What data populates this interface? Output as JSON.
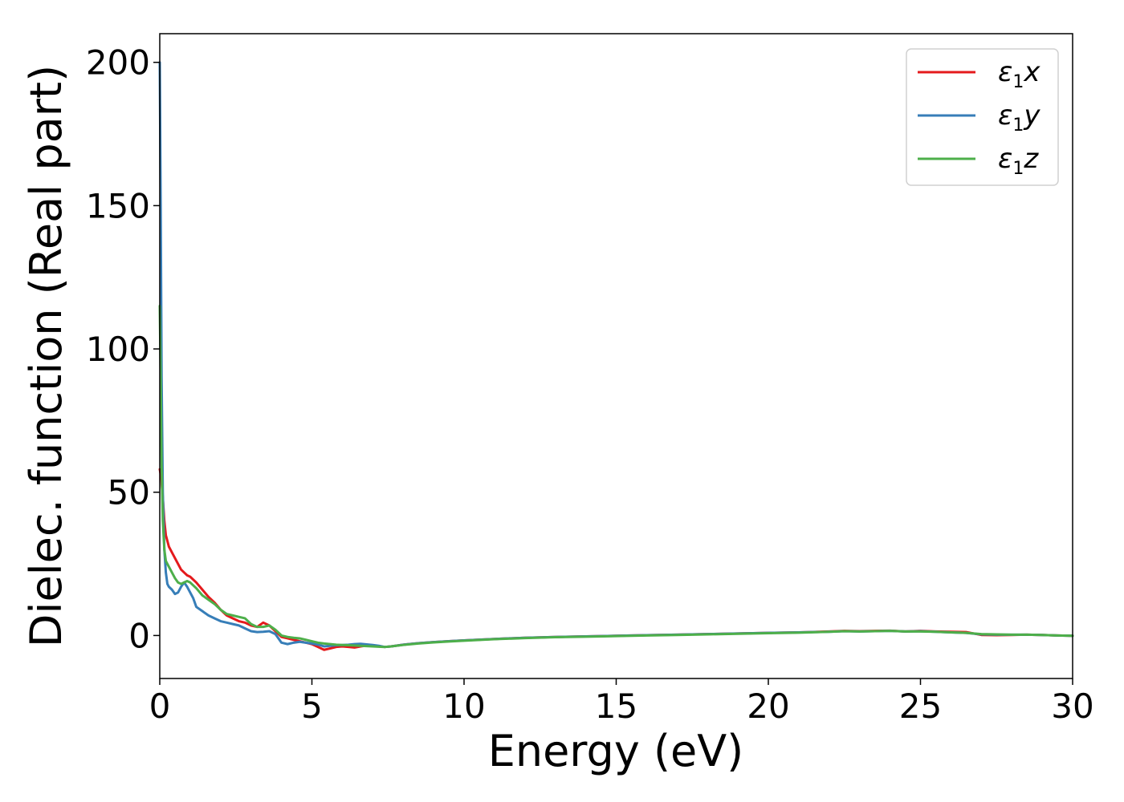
{
  "chart_data": {
    "type": "line",
    "title": "",
    "xlabel": "Energy (eV)",
    "ylabel": "Dielec. function (Real part)",
    "xlim": [
      0,
      30
    ],
    "ylim": [
      -15,
      210
    ],
    "xticks": [
      0,
      5,
      10,
      15,
      20,
      25,
      30
    ],
    "xtick_labels": [
      "0",
      "5",
      "10",
      "15",
      "20",
      "25",
      "30"
    ],
    "yticks": [
      0,
      50,
      100,
      150,
      200
    ],
    "ytick_labels": [
      "0",
      "50",
      "100",
      "150",
      "200"
    ],
    "grid": false,
    "legend": {
      "location": "upper-right",
      "entries": [
        {
          "base": "ε",
          "sub": "1",
          "var": "x",
          "color": "#e41a1c"
        },
        {
          "base": "ε",
          "sub": "1",
          "var": "y",
          "color": "#377eb8"
        },
        {
          "base": "ε",
          "sub": "1",
          "var": "z",
          "color": "#4daf4a"
        }
      ]
    },
    "series": [
      {
        "color": "#e41a1c",
        "x": [
          0,
          0.05,
          0.1,
          0.15,
          0.2,
          0.3,
          0.4,
          0.5,
          0.6,
          0.7,
          0.8,
          0.9,
          1.0,
          1.2,
          1.4,
          1.6,
          1.8,
          2.0,
          2.2,
          2.4,
          2.6,
          2.8,
          3.0,
          3.2,
          3.4,
          3.6,
          3.8,
          4.0,
          4.2,
          4.4,
          4.6,
          4.8,
          5.0,
          5.2,
          5.4,
          5.6,
          5.8,
          6.0,
          6.2,
          6.4,
          6.6,
          6.8,
          7.0,
          7.2,
          7.4,
          7.6,
          8.0,
          8.5,
          9.0,
          9.5,
          10.0,
          11.0,
          12.0,
          13.0,
          14.0,
          15.0,
          16.0,
          17.0,
          18.0,
          19.0,
          20.0,
          21.0,
          22.0,
          22.5,
          23.0,
          23.5,
          24.0,
          24.5,
          25.0,
          25.5,
          26.0,
          26.5,
          27.0,
          27.5,
          28.0,
          28.5,
          29.0,
          29.5,
          30.0
        ],
        "y": [
          58,
          55,
          48,
          40,
          35,
          31,
          29,
          27,
          25,
          23,
          22,
          21,
          20.5,
          18.5,
          16,
          13.5,
          11.5,
          9,
          7,
          6,
          5,
          4.5,
          3.5,
          3,
          4.5,
          3.5,
          1.5,
          -0.5,
          -1,
          -1.5,
          -2,
          -2.5,
          -3,
          -4,
          -5,
          -4.5,
          -4,
          -3.8,
          -4,
          -4.2,
          -3.8,
          -3.5,
          -3.6,
          -3.8,
          -4,
          -3.8,
          -3.2,
          -2.7,
          -2.3,
          -2,
          -1.7,
          -1.2,
          -0.8,
          -0.5,
          -0.3,
          -0.1,
          0.1,
          0.3,
          0.5,
          0.7,
          0.9,
          1.1,
          1.4,
          1.6,
          1.5,
          1.6,
          1.7,
          1.4,
          1.6,
          1.4,
          1.3,
          1.2,
          0.2,
          0.1,
          0.2,
          0.3,
          0.2,
          0.0,
          -0.1
        ]
      },
      {
        "color": "#377eb8",
        "x": [
          0,
          0.03,
          0.06,
          0.1,
          0.15,
          0.2,
          0.25,
          0.3,
          0.4,
          0.5,
          0.6,
          0.7,
          0.8,
          0.9,
          1.0,
          1.1,
          1.2,
          1.4,
          1.6,
          1.8,
          2.0,
          2.2,
          2.4,
          2.6,
          2.8,
          3.0,
          3.2,
          3.4,
          3.6,
          3.8,
          3.9,
          4.0,
          4.2,
          4.4,
          4.6,
          4.8,
          5.0,
          5.2,
          5.4,
          5.6,
          5.8,
          6.0,
          6.2,
          6.4,
          6.6,
          6.8,
          7.0,
          7.2,
          7.4,
          7.6,
          8.0,
          8.5,
          9.0,
          9.5,
          10.0,
          11.0,
          12.0,
          13.0,
          14.0,
          15.0,
          16.0,
          17.0,
          18.0,
          19.0,
          20.0,
          21.0,
          22.0,
          22.5,
          23.0,
          23.5,
          24.0,
          24.5,
          25.0,
          25.5,
          26.0,
          26.5,
          27.0,
          27.5,
          28.0,
          28.5,
          29.0,
          29.5,
          30.0
        ],
        "y": [
          200,
          150,
          90,
          50,
          30,
          22,
          18,
          17,
          16,
          14.5,
          15,
          17,
          18.5,
          17,
          15,
          13,
          10,
          8.5,
          7,
          6,
          5,
          4.5,
          4,
          3.5,
          2.5,
          1.5,
          1.2,
          1.3,
          1.5,
          0.5,
          -1,
          -2.5,
          -3,
          -2.5,
          -2.2,
          -2.5,
          -2.8,
          -3.2,
          -3.8,
          -3.6,
          -3.4,
          -3.3,
          -3.2,
          -3,
          -2.9,
          -3.1,
          -3.3,
          -3.6,
          -4,
          -3.8,
          -3.2,
          -2.7,
          -2.3,
          -2,
          -1.7,
          -1.2,
          -0.8,
          -0.5,
          -0.3,
          -0.1,
          0.1,
          0.3,
          0.5,
          0.7,
          0.9,
          1.1,
          1.3,
          1.5,
          1.4,
          1.5,
          1.6,
          1.4,
          1.5,
          1.3,
          1.1,
          0.9,
          0.4,
          0.3,
          0.3,
          0.3,
          0.2,
          0.0,
          -0.1
        ]
      },
      {
        "color": "#4daf4a",
        "x": [
          0,
          0.03,
          0.06,
          0.1,
          0.15,
          0.2,
          0.3,
          0.4,
          0.5,
          0.6,
          0.7,
          0.8,
          0.9,
          1.0,
          1.2,
          1.4,
          1.6,
          1.8,
          2.0,
          2.2,
          2.4,
          2.6,
          2.8,
          3.0,
          3.2,
          3.4,
          3.6,
          3.8,
          4.0,
          4.2,
          4.4,
          4.6,
          4.8,
          5.0,
          5.2,
          5.4,
          5.6,
          5.8,
          6.0,
          6.2,
          6.4,
          6.6,
          6.8,
          7.0,
          7.2,
          7.4,
          7.6,
          8.0,
          8.5,
          9.0,
          9.5,
          10.0,
          11.0,
          12.0,
          13.0,
          14.0,
          15.0,
          16.0,
          17.0,
          18.0,
          19.0,
          20.0,
          21.0,
          22.0,
          22.5,
          23.0,
          23.5,
          24.0,
          24.5,
          25.0,
          25.5,
          26.0,
          26.5,
          27.0,
          27.5,
          28.0,
          28.5,
          29.0,
          29.5,
          30.0
        ],
        "y": [
          115,
          90,
          60,
          40,
          30,
          26,
          24,
          22,
          20,
          18.5,
          18,
          18.5,
          19,
          18.5,
          16.5,
          14,
          12.5,
          11,
          9,
          7.5,
          7,
          6.5,
          6,
          4,
          3,
          3,
          3.5,
          2,
          0,
          -0.5,
          -0.8,
          -1,
          -1.5,
          -2,
          -2.5,
          -2.8,
          -3,
          -3.2,
          -3.3,
          -3.4,
          -3.5,
          -3.6,
          -3.7,
          -3.8,
          -3.9,
          -4,
          -3.8,
          -3.3,
          -2.8,
          -2.4,
          -2.1,
          -1.8,
          -1.3,
          -0.9,
          -0.6,
          -0.4,
          -0.2,
          0.0,
          0.2,
          0.4,
          0.6,
          0.8,
          1.0,
          1.3,
          1.5,
          1.4,
          1.5,
          1.6,
          1.4,
          1.4,
          1.3,
          1.1,
          0.9,
          0.5,
          0.4,
          0.3,
          0.3,
          0.2,
          0.0,
          -0.1
        ]
      }
    ]
  }
}
